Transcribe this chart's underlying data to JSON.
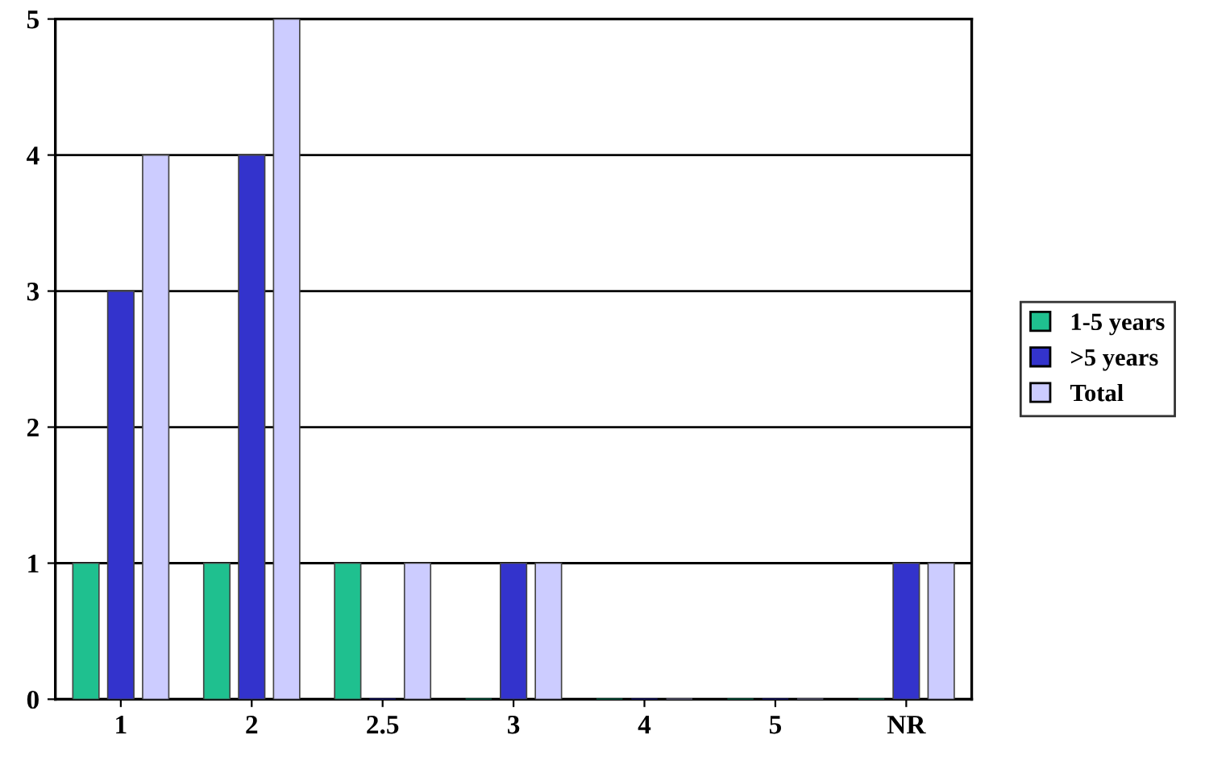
{
  "chart_data": {
    "type": "bar",
    "categories": [
      "1",
      "2",
      "2.5",
      "3",
      "4",
      "5",
      "NR"
    ],
    "series": [
      {
        "name": "1-5 years",
        "color": "#1fc08f",
        "values": [
          1,
          1,
          1,
          0,
          0,
          0,
          0
        ]
      },
      {
        "name": ">5 years",
        "color": "#3333cc",
        "values": [
          3,
          4,
          0,
          1,
          0,
          0,
          1
        ]
      },
      {
        "name": "Total",
        "color": "#ccccff",
        "values": [
          4,
          5,
          1,
          1,
          0,
          0,
          1
        ]
      }
    ],
    "ylim": [
      0,
      5
    ],
    "yticks": [
      0,
      1,
      2,
      3,
      4,
      5
    ],
    "grid": "y",
    "legend": "right"
  }
}
